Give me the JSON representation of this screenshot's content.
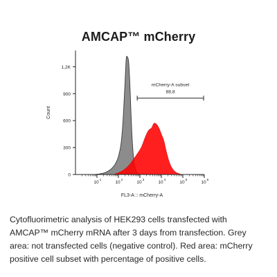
{
  "chart_data": {
    "type": "area",
    "title": "AMCAP™ mCherry",
    "xlabel": "FL3-A :: mCherry-A",
    "ylabel": "Count",
    "x_scale": "log",
    "xlim": [
      1,
      1000000
    ],
    "ylim": [
      0,
      1380
    ],
    "x_ticks": [
      {
        "value": 10,
        "label": "10",
        "sup": "1"
      },
      {
        "value": 100,
        "label": "10",
        "sup": "2"
      },
      {
        "value": 1000,
        "label": "10",
        "sup": "3"
      },
      {
        "value": 10000,
        "label": "10",
        "sup": "4"
      },
      {
        "value": 100000,
        "label": "10",
        "sup": "5"
      },
      {
        "value": 1000000,
        "label": "10",
        "sup": "6"
      }
    ],
    "y_ticks": [
      {
        "value": 0,
        "label": "0"
      },
      {
        "value": 300,
        "label": "300"
      },
      {
        "value": 600,
        "label": "600"
      },
      {
        "value": 900,
        "label": "900"
      },
      {
        "value": 1200,
        "label": "1,2K"
      }
    ],
    "series": [
      {
        "name": "",
        "color": "#8c8c8c",
        "x": [
          8,
          20,
          40,
          60,
          80,
          100,
          130,
          160,
          200,
          230,
          260,
          300,
          340,
          380,
          420,
          480,
          550,
          650,
          800,
          1000
        ],
        "values": [
          0,
          15,
          50,
          90,
          140,
          200,
          330,
          560,
          990,
          1280,
          1310,
          1250,
          1020,
          720,
          470,
          250,
          120,
          50,
          10,
          0
        ]
      },
      {
        "name": "",
        "color": "#ff0000",
        "x": [
          60,
          150,
          300,
          500,
          800,
          1200,
          1800,
          2500,
          3500,
          4500,
          6000,
          8000,
          10000,
          13000,
          17000,
          22000,
          30000,
          45000,
          70000,
          100000
        ],
        "values": [
          0,
          40,
          100,
          170,
          240,
          310,
          420,
          490,
          520,
          570,
          560,
          510,
          450,
          380,
          260,
          160,
          80,
          30,
          8,
          0
        ]
      }
    ],
    "gate": {
      "label": "mCherry-A subset",
      "value": "88,8",
      "x_start": 750,
      "x_end": 1000000,
      "y": 850
    }
  },
  "caption": "Cytofluorimetric analysis of HEK293 cells transfected with AMCAP™ mCherry mRNA after 3 days from transfection. Grey area: not transfected cells (negative control). Red area: mCherry positive cell subset with percentage of positive cells."
}
